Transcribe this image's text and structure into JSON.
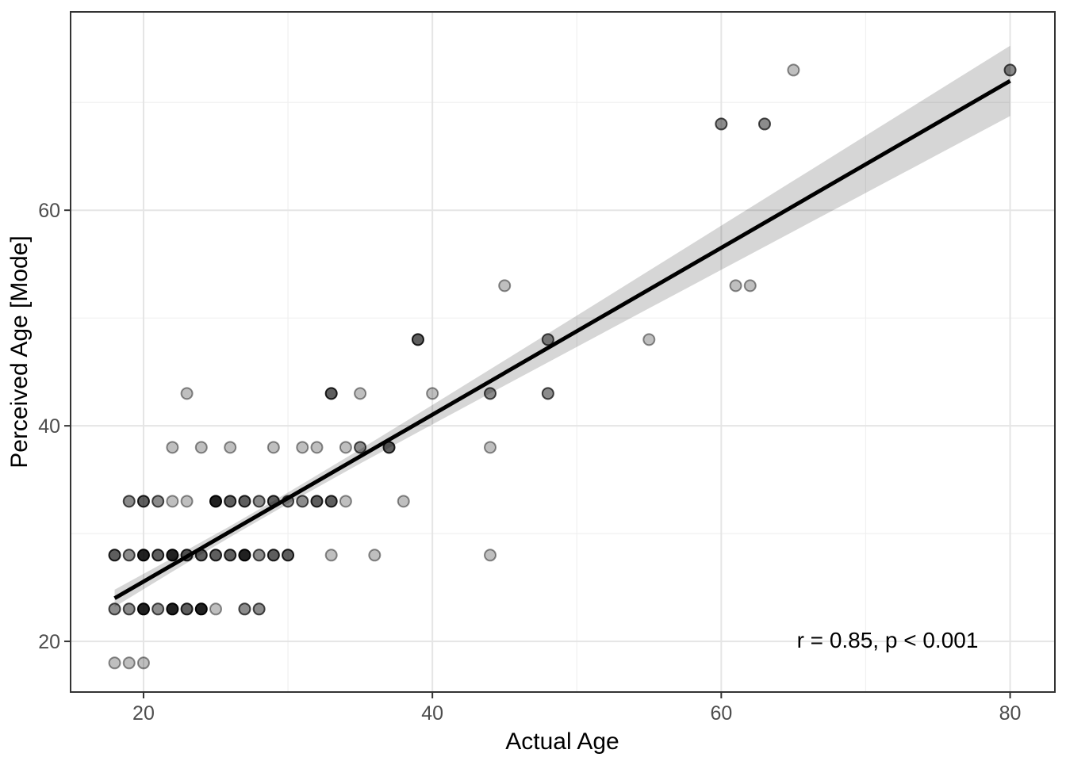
{
  "chart_data": {
    "type": "scatter",
    "title": "",
    "xlabel": "Actual Age",
    "ylabel": "Perceived Age [Mode]",
    "xlim": [
      14.95,
      83.1
    ],
    "ylim": [
      15.3,
      78.4
    ],
    "grid": "on",
    "legend": "none",
    "x_major_ticks": [
      20,
      40,
      60,
      80
    ],
    "y_major_ticks": [
      20,
      40,
      60
    ],
    "x_minor_gridlines": [
      30,
      50,
      70
    ],
    "y_minor_gridlines": [
      30,
      50,
      70
    ],
    "annotation": {
      "text": "r = 0.85, p < 0.001",
      "x": 71.5,
      "y": 20.2
    },
    "regression_line": {
      "x": [
        18,
        80
      ],
      "y": [
        24.0,
        72.0
      ]
    },
    "ci_band": {
      "x": [
        18,
        22,
        26,
        30,
        35,
        40,
        45,
        50,
        55,
        60,
        65,
        70,
        75,
        80
      ],
      "upper": [
        24.8,
        27.73,
        30.7,
        33.81,
        37.82,
        41.93,
        46.07,
        50.22,
        54.4,
        58.57,
        62.74,
        66.92,
        71.09,
        75.26
      ],
      "lower": [
        23.2,
        26.47,
        29.68,
        32.77,
        36.5,
        40.13,
        43.73,
        47.32,
        50.9,
        54.47,
        58.04,
        61.6,
        65.17,
        68.74
      ]
    },
    "points_note": "each point is [actual_age, perceived_age_mode, overlap_level 1..4]",
    "points": [
      [
        18,
        18,
        1
      ],
      [
        19,
        18,
        1
      ],
      [
        20,
        18,
        1
      ],
      [
        18,
        23,
        2
      ],
      [
        19,
        23,
        2
      ],
      [
        20,
        23,
        4
      ],
      [
        21,
        23,
        2
      ],
      [
        22,
        23,
        4
      ],
      [
        23,
        23,
        3
      ],
      [
        24,
        23,
        4
      ],
      [
        25,
        23,
        1
      ],
      [
        27,
        23,
        2
      ],
      [
        28,
        23,
        2
      ],
      [
        18,
        28,
        3
      ],
      [
        19,
        28,
        2
      ],
      [
        20,
        28,
        4
      ],
      [
        21,
        28,
        3
      ],
      [
        22,
        28,
        4
      ],
      [
        23,
        28,
        3
      ],
      [
        24,
        28,
        3
      ],
      [
        25,
        28,
        3
      ],
      [
        26,
        28,
        3
      ],
      [
        27,
        28,
        4
      ],
      [
        28,
        28,
        2
      ],
      [
        29,
        28,
        3
      ],
      [
        30,
        28,
        3
      ],
      [
        33,
        28,
        1
      ],
      [
        36,
        28,
        1
      ],
      [
        44,
        28,
        1
      ],
      [
        19,
        33,
        2
      ],
      [
        20,
        33,
        3
      ],
      [
        21,
        33,
        2
      ],
      [
        22,
        33,
        1
      ],
      [
        23,
        33,
        1
      ],
      [
        25,
        33,
        4
      ],
      [
        26,
        33,
        3
      ],
      [
        27,
        33,
        3
      ],
      [
        28,
        33,
        2
      ],
      [
        29,
        33,
        3
      ],
      [
        30,
        33,
        2
      ],
      [
        31,
        33,
        2
      ],
      [
        32,
        33,
        3
      ],
      [
        33,
        33,
        3
      ],
      [
        34,
        33,
        1
      ],
      [
        38,
        33,
        1
      ],
      [
        22,
        38,
        1
      ],
      [
        24,
        38,
        1
      ],
      [
        26,
        38,
        1
      ],
      [
        29,
        38,
        1
      ],
      [
        31,
        38,
        1
      ],
      [
        32,
        38,
        1
      ],
      [
        34,
        38,
        1
      ],
      [
        35,
        38,
        2
      ],
      [
        37,
        38,
        3
      ],
      [
        44,
        38,
        1
      ],
      [
        23,
        43,
        1
      ],
      [
        33,
        43,
        3
      ],
      [
        35,
        43,
        1
      ],
      [
        40,
        43,
        1
      ],
      [
        44,
        43,
        2
      ],
      [
        48,
        43,
        2
      ],
      [
        39,
        48,
        3
      ],
      [
        48,
        48,
        2
      ],
      [
        55,
        48,
        1
      ],
      [
        45,
        53,
        1
      ],
      [
        61,
        53,
        1
      ],
      [
        62,
        53,
        1
      ],
      [
        60,
        68,
        2
      ],
      [
        63,
        68,
        2
      ],
      [
        65,
        73,
        1
      ],
      [
        80,
        73,
        2
      ]
    ],
    "x_tick_labels": [
      "20",
      "40",
      "60",
      "80"
    ],
    "y_tick_labels": [
      "20",
      "40",
      "60"
    ]
  },
  "style": {
    "background": "#ffffff",
    "panel_border": "#333333",
    "major_grid": "#e5e5e5",
    "minor_grid": "#f0f0f0",
    "tick_color": "#333333",
    "tick_label_color": "#4d4d4d",
    "axis_title_color": "#000000",
    "annotation_color": "#000000",
    "point_color": "#000000",
    "line_color": "#000000",
    "band_color": "#000000",
    "band_opacity": 0.16,
    "alpha_levels": {
      "1": 0.25,
      "2": 0.45,
      "3": 0.63,
      "4": 0.87
    }
  }
}
